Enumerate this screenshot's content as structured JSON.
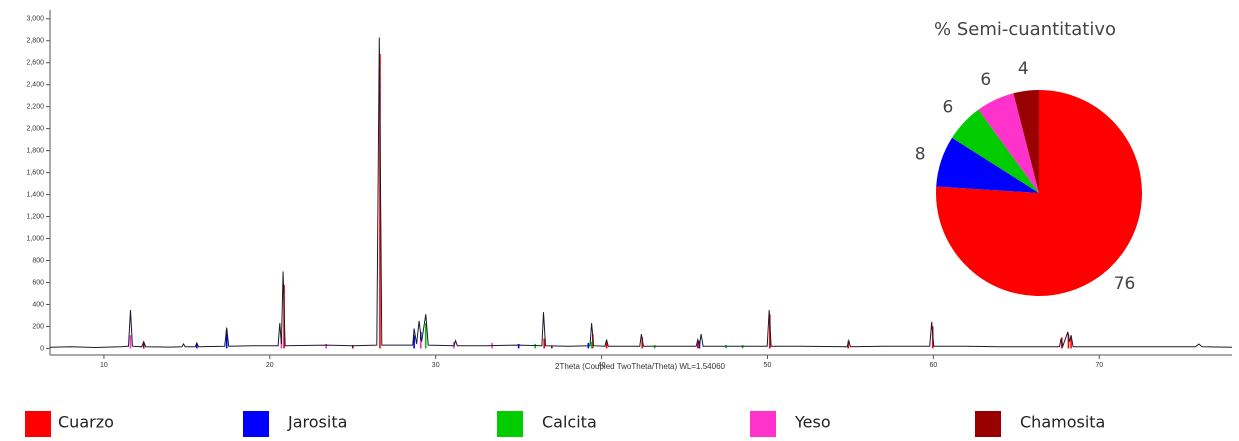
{
  "chart_data": [
    {
      "type": "line",
      "x_label": "2Theta (Coupled TwoTheta/Theta) WL=1.54060",
      "xlim": [
        6.75,
        78
      ],
      "xticks": [
        10,
        20,
        30,
        40,
        50,
        60,
        70
      ],
      "ylim": [
        -60,
        3080
      ],
      "yticks": [
        0,
        200,
        400,
        600,
        800,
        {
          "value": 1000,
          "label": "1,000"
        },
        {
          "value": 1200,
          "label": "1,200"
        },
        {
          "value": 1400,
          "label": "1,400"
        },
        {
          "value": 1600,
          "label": "1,600"
        },
        {
          "value": 1800,
          "label": "1,800"
        },
        {
          "value": 2000,
          "label": "2,000"
        },
        {
          "value": 2200,
          "label": "2,200"
        },
        {
          "value": 2400,
          "label": "2,400"
        },
        {
          "value": 2600,
          "label": "2,600"
        },
        {
          "value": 2800,
          "label": "2,800"
        },
        {
          "value": 3000,
          "label": "3,000"
        }
      ],
      "color": "#1a1a2e",
      "x": [
        6.75,
        8.0,
        9.5,
        11.0,
        11.48,
        11.6,
        11.72,
        12.28,
        12.4,
        12.52,
        14.0,
        14.7,
        14.8,
        14.9,
        15.5,
        15.6,
        15.7,
        17.28,
        17.4,
        17.52,
        19.0,
        20.5,
        20.6,
        20.7,
        20.8,
        20.92,
        23.4,
        25.0,
        26.45,
        26.6,
        26.75,
        28.0,
        28.62,
        28.7,
        28.85,
        29.0,
        29.15,
        29.4,
        29.55,
        31.1,
        31.2,
        31.3,
        33.0,
        35.0,
        36.4,
        36.5,
        36.62,
        38.0,
        39.3,
        39.4,
        39.52,
        40.2,
        40.3,
        40.4,
        42.3,
        42.4,
        42.52,
        44.0,
        45.7,
        45.8,
        45.9,
        46.0,
        46.12,
        48.0,
        49.98,
        50.1,
        50.22,
        52.0,
        54.8,
        54.9,
        55.0,
        57.0,
        59.78,
        59.9,
        60.02,
        62.0,
        64.0,
        66.0,
        67.6,
        67.7,
        67.8,
        68.1,
        68.2,
        68.3,
        68.42,
        70.0,
        72.0,
        74.0,
        75.8,
        76.0,
        76.2,
        78.0
      ],
      "values": [
        10,
        15,
        8,
        15,
        20,
        350,
        20,
        15,
        60,
        15,
        12,
        15,
        40,
        15,
        15,
        50,
        15,
        20,
        190,
        20,
        25,
        25,
        230,
        40,
        700,
        25,
        30,
        25,
        30,
        2830,
        30,
        30,
        30,
        180,
        40,
        250,
        60,
        310,
        30,
        25,
        70,
        25,
        25,
        30,
        25,
        330,
        25,
        20,
        25,
        230,
        25,
        20,
        80,
        20,
        20,
        130,
        20,
        20,
        20,
        80,
        30,
        130,
        20,
        20,
        20,
        350,
        20,
        20,
        15,
        70,
        15,
        20,
        20,
        240,
        20,
        20,
        15,
        15,
        15,
        90,
        20,
        150,
        60,
        120,
        15,
        15,
        15,
        15,
        15,
        40,
        15,
        10
      ],
      "peaks": [
        {
          "color": "#ff0000",
          "x": [
            20.86,
            26.64,
            36.54,
            39.47,
            40.3,
            42.45,
            45.8,
            50.14,
            54.87,
            59.96,
            67.74,
            68.14,
            68.3
          ],
          "values": [
            580,
            2680,
            90,
            130,
            60,
            100,
            60,
            310,
            70,
            200,
            100,
            130,
            90
          ]
        },
        {
          "color": "#0000ff",
          "x": [
            15.6,
            17.4,
            28.7,
            29.1,
            35.0,
            39.2,
            45.9
          ],
          "values": [
            40,
            170,
            120,
            150,
            40,
            50,
            70
          ]
        },
        {
          "color": "#00cc00",
          "x": [
            29.4,
            36.0,
            39.4,
            43.2,
            47.5,
            48.5
          ],
          "values": [
            230,
            40,
            60,
            30,
            30,
            30
          ]
        },
        {
          "color": "#ff33cc",
          "x": [
            11.6,
            20.7,
            23.4,
            29.1,
            31.1,
            33.4
          ],
          "values": [
            120,
            110,
            40,
            80,
            60,
            50
          ]
        },
        {
          "color": "#990000",
          "x": [
            12.4,
            25.0,
            37.0
          ],
          "values": [
            60,
            30,
            25
          ]
        }
      ]
    },
    {
      "type": "pie",
      "title": "% Semi-cuantitativo",
      "categories": [
        "Cuarzo",
        "Jarosita",
        "Calcita",
        "Yeso",
        "Chamosita"
      ],
      "values": [
        76,
        8,
        6,
        6,
        4
      ],
      "colors": [
        "#ff0000",
        "#0000ff",
        "#00cc00",
        "#ff33cc",
        "#990000"
      ]
    }
  ]
}
